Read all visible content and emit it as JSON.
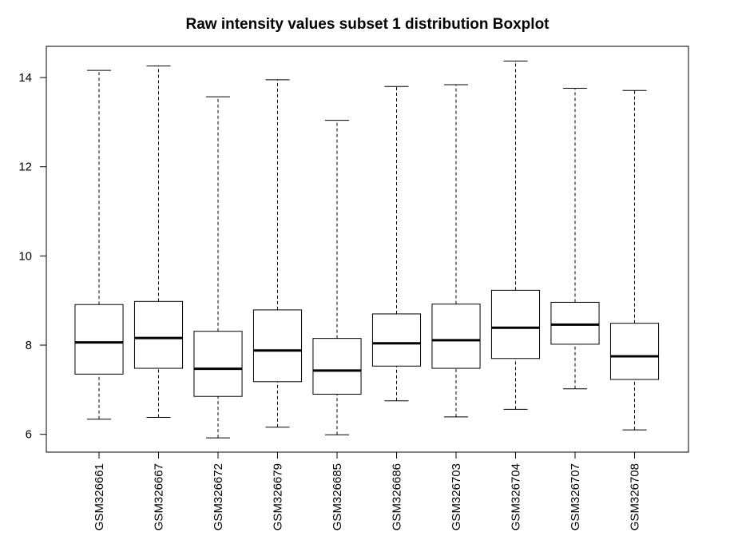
{
  "chart_data": {
    "type": "boxplot",
    "title": "Raw intensity values subset 1 distribution Boxplot",
    "xlabel": "",
    "ylabel": "",
    "ylim": [
      5.6,
      14.7
    ],
    "yticks": [
      6,
      8,
      10,
      12,
      14
    ],
    "yticks_text": [
      "6",
      "8",
      "10",
      "12",
      "14"
    ],
    "categories": [
      "GSM326661",
      "GSM326667",
      "GSM326672",
      "GSM326679",
      "GSM326685",
      "GSM326686",
      "GSM326703",
      "GSM326704",
      "GSM326707",
      "GSM326708"
    ],
    "boxes": [
      {
        "min": 6.34,
        "q1": 7.35,
        "median": 8.06,
        "q3": 8.91,
        "max": 14.16
      },
      {
        "min": 6.38,
        "q1": 7.48,
        "median": 8.16,
        "q3": 8.98,
        "max": 14.26
      },
      {
        "min": 5.92,
        "q1": 6.85,
        "median": 7.47,
        "q3": 8.31,
        "max": 13.57
      },
      {
        "min": 6.16,
        "q1": 7.18,
        "median": 7.88,
        "q3": 8.79,
        "max": 13.95
      },
      {
        "min": 5.99,
        "q1": 6.9,
        "median": 7.43,
        "q3": 8.15,
        "max": 13.04
      },
      {
        "min": 6.75,
        "q1": 7.53,
        "median": 8.04,
        "q3": 8.7,
        "max": 13.8
      },
      {
        "min": 6.39,
        "q1": 7.48,
        "median": 8.11,
        "q3": 8.92,
        "max": 13.84
      },
      {
        "min": 6.56,
        "q1": 7.7,
        "median": 8.39,
        "q3": 9.23,
        "max": 14.37
      },
      {
        "min": 7.02,
        "q1": 8.02,
        "median": 8.46,
        "q3": 8.96,
        "max": 13.76
      },
      {
        "min": 6.1,
        "q1": 7.23,
        "median": 7.75,
        "q3": 8.49,
        "max": 13.71
      }
    ],
    "grid": false,
    "legend": "none"
  }
}
